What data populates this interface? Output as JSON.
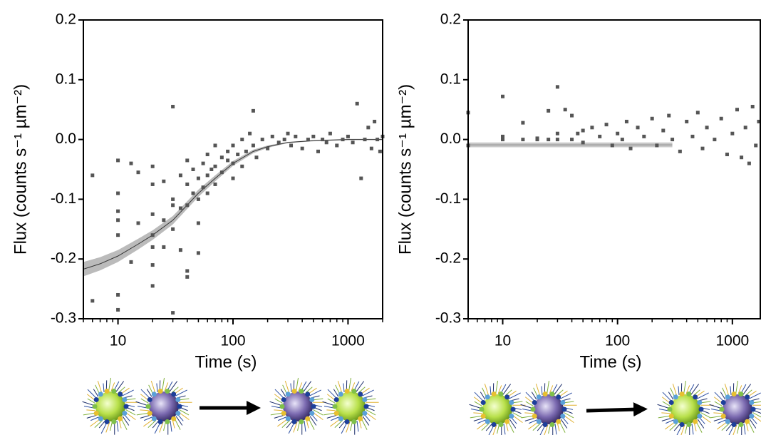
{
  "charts": [
    {
      "chart_data": {
        "type": "scatter",
        "xscale": "log",
        "xlabel": "Time (s)",
        "ylabel": "Flux (counts s⁻¹ µm⁻²)",
        "xlim": [
          5,
          2000
        ],
        "ylim": [
          -0.3,
          0.2
        ],
        "xticks": [
          10,
          100,
          1000
        ],
        "xminorticks": [
          5,
          6,
          7,
          8,
          9,
          20,
          30,
          40,
          50,
          60,
          70,
          80,
          90,
          200,
          300,
          400,
          500,
          600,
          700,
          800,
          900,
          2000
        ],
        "yticks": [
          0.2,
          0.1,
          {
            "value": 0,
            "label": "0.0"
          },
          -0.1,
          -0.2,
          -0.3
        ],
        "series": [
          {
            "color": "#555555",
            "x": [
              6,
              6,
              10,
              10,
              10,
              10,
              10,
              10,
              10,
              13,
              13,
              15,
              15,
              20,
              20,
              20,
              20,
              20,
              20,
              20,
              25,
              25,
              25,
              30,
              30,
              30,
              30,
              30,
              35,
              35,
              35,
              40,
              40,
              40,
              40,
              40,
              45,
              45,
              50,
              50,
              50,
              50,
              55,
              55,
              60,
              60,
              60,
              65,
              70,
              70,
              70,
              80,
              80,
              90,
              90,
              100,
              100,
              100,
              110,
              120,
              120,
              130,
              140,
              150,
              150,
              160,
              180,
              200,
              220,
              250,
              280,
              300,
              320,
              350,
              400,
              450,
              500,
              550,
              600,
              650,
              700,
              800,
              900,
              1000,
              1100,
              1200,
              1300,
              1400,
              1500,
              1600,
              1700,
              1800,
              1900,
              2000
            ],
            "values": [
              -0.06,
              -0.27,
              -0.035,
              -0.09,
              -0.12,
              -0.135,
              -0.16,
              -0.26,
              -0.285,
              -0.04,
              -0.205,
              -0.055,
              -0.14,
              -0.045,
              -0.075,
              -0.125,
              -0.16,
              -0.18,
              -0.245,
              -0.21,
              -0.07,
              -0.135,
              -0.18,
              0.055,
              -0.1,
              -0.11,
              -0.15,
              -0.29,
              -0.06,
              -0.115,
              -0.185,
              -0.035,
              -0.075,
              -0.11,
              -0.22,
              -0.23,
              -0.05,
              -0.09,
              -0.065,
              -0.1,
              -0.14,
              -0.19,
              -0.04,
              -0.08,
              -0.025,
              -0.06,
              -0.09,
              -0.05,
              -0.01,
              -0.045,
              -0.075,
              -0.03,
              -0.055,
              -0.035,
              -0.02,
              -0.01,
              -0.04,
              -0.065,
              -0.025,
              0.0,
              -0.045,
              -0.02,
              0.01,
              0.048,
              -0.01,
              -0.03,
              0.0,
              -0.015,
              0.005,
              -0.005,
              0.0,
              0.01,
              -0.01,
              0.005,
              -0.015,
              0.0,
              0.005,
              -0.02,
              0.0,
              -0.005,
              0.01,
              -0.01,
              0.0,
              0.005,
              -0.005,
              0.06,
              -0.065,
              0.0,
              0.02,
              -0.015,
              0.03,
              0.0,
              -0.02,
              0.005
            ]
          }
        ],
        "fit": {
          "color": "#333333",
          "band_color": "#bbbbbb",
          "x": [
            5,
            7,
            10,
            15,
            20,
            30,
            50,
            70,
            100,
            150,
            200,
            300,
            500,
            1000,
            2000
          ],
          "values": [
            -0.217,
            -0.208,
            -0.195,
            -0.175,
            -0.16,
            -0.135,
            -0.09,
            -0.065,
            -0.04,
            -0.02,
            -0.012,
            -0.005,
            -0.002,
            0,
            0
          ],
          "lower": [
            -0.229,
            -0.219,
            -0.205,
            -0.184,
            -0.168,
            -0.142,
            -0.096,
            -0.07,
            -0.044,
            -0.023,
            -0.014,
            -0.006,
            -0.003,
            -0.001,
            -0.001
          ],
          "upper": [
            -0.205,
            -0.197,
            -0.185,
            -0.166,
            -0.152,
            -0.128,
            -0.084,
            -0.06,
            -0.036,
            -0.017,
            -0.01,
            -0.004,
            -0.001,
            0.001,
            0.001
          ]
        }
      }
    },
    {
      "chart_data": {
        "type": "scatter",
        "xscale": "log",
        "xlabel": "Time (s)",
        "ylabel": "Flux (counts s⁻¹ µm⁻²)",
        "xlim": [
          5,
          1750
        ],
        "ylim": [
          -0.3,
          0.2
        ],
        "xticks": [
          10,
          100,
          1000
        ],
        "xminorticks": [
          5,
          6,
          7,
          8,
          9,
          20,
          30,
          40,
          50,
          60,
          70,
          80,
          90,
          200,
          300,
          400,
          500,
          600,
          700,
          800,
          900
        ],
        "yticks": [
          0.2,
          0.1,
          {
            "value": 0,
            "label": "0.0"
          },
          -0.1,
          -0.2,
          -0.3
        ],
        "series": [
          {
            "color": "#555555",
            "x": [
              5,
              5,
              10,
              10,
              10,
              15,
              15,
              20,
              20,
              25,
              25,
              30,
              30,
              30,
              35,
              40,
              40,
              45,
              50,
              50,
              60,
              70,
              80,
              90,
              100,
              110,
              120,
              130,
              150,
              170,
              200,
              220,
              250,
              280,
              300,
              350,
              400,
              450,
              500,
              550,
              600,
              700,
              800,
              900,
              1000,
              1100,
              1200,
              1300,
              1400,
              1500,
              1600,
              1700
            ],
            "values": [
              0.045,
              -0.01,
              0.072,
              0.0,
              0.005,
              0.028,
              0.0,
              0.0,
              0.002,
              0.0,
              0.048,
              0.088,
              0.0,
              0.01,
              0.05,
              0.04,
              0.0,
              0.01,
              0.015,
              -0.005,
              0.02,
              0.005,
              0.025,
              -0.01,
              0.01,
              0.0,
              0.03,
              -0.015,
              0.02,
              0.005,
              0.035,
              -0.01,
              0.015,
              0.04,
              0.0,
              -0.02,
              0.03,
              0.005,
              0.045,
              -0.015,
              0.02,
              0.0,
              0.035,
              -0.025,
              0.01,
              0.05,
              -0.03,
              0.02,
              -0.04,
              0.055,
              -0.01,
              0.03
            ]
          }
        ],
        "fit": {
          "color": "#888888",
          "band_color": "#c8c8c8",
          "x": [
            5,
            300
          ],
          "values": [
            -0.009,
            -0.009
          ],
          "lower": [
            -0.013,
            -0.013
          ],
          "upper": [
            -0.005,
            -0.005
          ]
        }
      }
    }
  ]
}
